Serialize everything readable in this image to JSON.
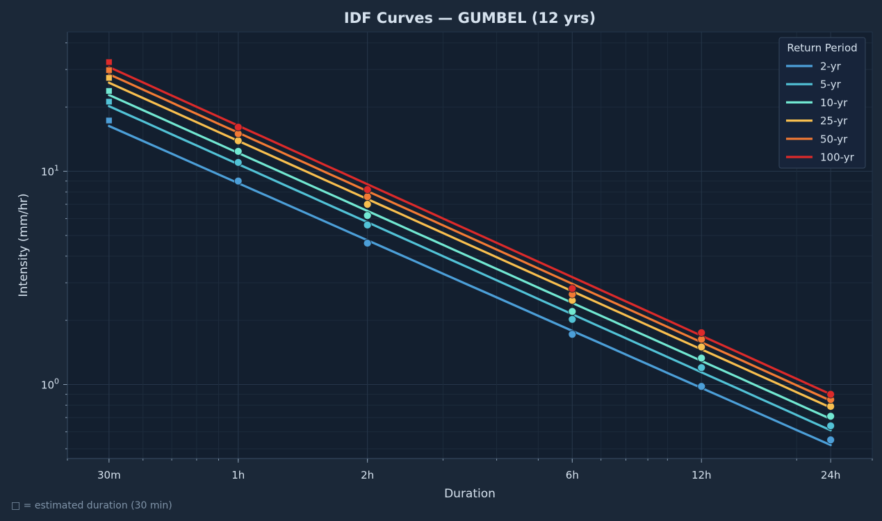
{
  "chart_data": {
    "type": "line",
    "title": "IDF Curves — GUMBEL  (12 yrs)",
    "xlabel": "Duration",
    "ylabel": "Intensity (mm/hr)",
    "x_scale": "log",
    "y_scale": "log",
    "xlim_hours": [
      0.4,
      30
    ],
    "ylim": [
      0.45,
      45
    ],
    "x_ticks": [
      {
        "hours": 0.5,
        "label": "30m"
      },
      {
        "hours": 1,
        "label": "1h"
      },
      {
        "hours": 2,
        "label": "2h"
      },
      {
        "hours": 6,
        "label": "6h"
      },
      {
        "hours": 12,
        "label": "12h"
      },
      {
        "hours": 24,
        "label": "24h"
      }
    ],
    "y_ticks": [
      {
        "value": 1,
        "base": "10",
        "exp": "0"
      },
      {
        "value": 10,
        "base": "10",
        "exp": "1"
      }
    ],
    "grid": true,
    "legend": {
      "title": "Return Period",
      "position": "top-right"
    },
    "fit_range_hours": [
      0.5,
      24
    ],
    "series": [
      {
        "name": "2-yr",
        "color": "#4c9fd8",
        "fit": [
          16.3,
          0.52
        ],
        "observed": {
          "1": 9.0,
          "2": 4.6,
          "6": 1.72,
          "12": 0.98,
          "24": 0.55
        },
        "estimated": {
          "0.5": 17.3
        }
      },
      {
        "name": "5-yr",
        "color": "#52c2d6",
        "fit": [
          20.2,
          0.61
        ],
        "observed": {
          "1": 11.0,
          "2": 5.6,
          "6": 2.02,
          "12": 1.2,
          "24": 0.64
        },
        "estimated": {
          "0.5": 21.2
        }
      },
      {
        "name": "10-yr",
        "color": "#72e8d2",
        "fit": [
          22.8,
          0.69
        ],
        "observed": {
          "1": 12.4,
          "2": 6.2,
          "6": 2.2,
          "12": 1.33,
          "24": 0.71
        },
        "estimated": {
          "0.5": 23.8
        }
      },
      {
        "name": "25-yr",
        "color": "#f8bf4f",
        "fit": [
          26.0,
          0.78
        ],
        "observed": {
          "1": 13.9,
          "2": 7.0,
          "6": 2.48,
          "12": 1.5,
          "24": 0.79
        },
        "estimated": {
          "0.5": 27.4
        }
      },
      {
        "name": "50-yr",
        "color": "#f27a34",
        "fit": [
          28.5,
          0.84
        ],
        "observed": {
          "1": 15.0,
          "2": 7.6,
          "6": 2.65,
          "12": 1.63,
          "24": 0.85
        },
        "estimated": {
          "0.5": 29.8
        }
      },
      {
        "name": "100-yr",
        "color": "#dd2a2a",
        "fit": [
          30.8,
          0.9
        ],
        "observed": {
          "1": 16.1,
          "2": 8.2,
          "6": 2.82,
          "12": 1.75,
          "24": 0.9
        },
        "estimated": {
          "0.5": 32.5
        }
      }
    ]
  },
  "footnote": "□ = estimated duration (30 min)"
}
